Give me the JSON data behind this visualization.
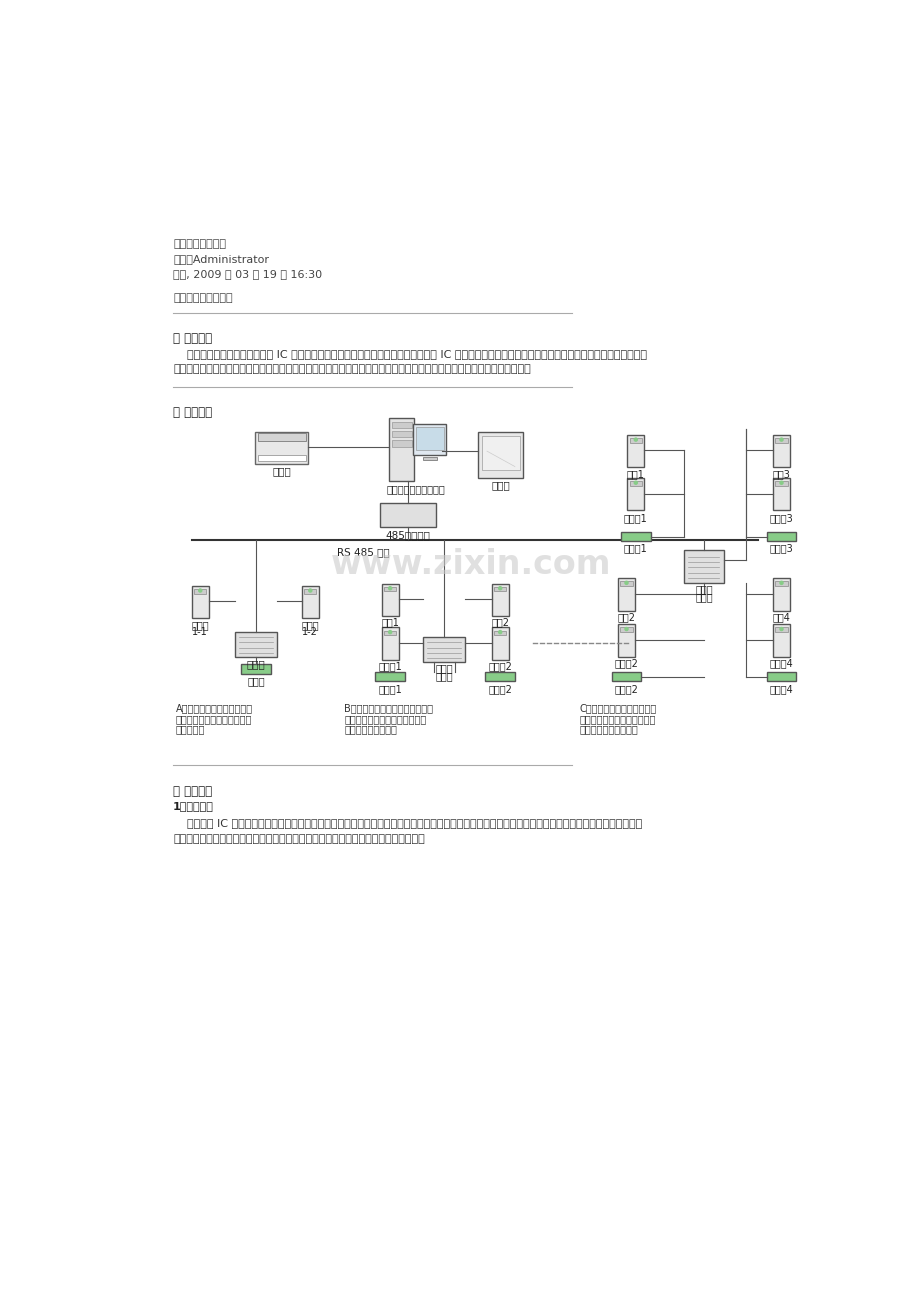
{
  "title_text": "门禁系统解决方案",
  "author_text": "作者：Administrator",
  "date_text": "周四, 2009 年 03 月 19 日 16:30",
  "slogan_text": "以卡代匙、安全方便",
  "section1_title": "一 方案概述",
  "section1_body1": "    智慧电子智能门禁管理系统将 IC 卡技术、计算机控制技术与电子门锁有机结合，用 IC 卡替代钥匙，配合计算机实现智能化门禁控制和管理，有效的解决",
  "section1_body2": "了传统门锁的使用繁琐和无法信息记录等不足，利用数据控制器采集的数据实现数字化管理可为内部人力资源的有效管理。",
  "section2_title": "二 系统结构",
  "section3_title": "三 系统功能",
  "section3_sub1": "1、电子钥匙",
  "section3_body1": "    授权后的 IC 卡即可当作电子钥匙，将此电子钥匙感应器前一晃，感应器感应到信号后指示灯由红变绿，控制器对该卡进行身份验证，验证合法后即控制电",
  "section3_body2": "子门锁自动打开。同时控制器记录开门的日期、时间、卡号、姓名等持卡人出入信息。",
  "bg_color": "#ffffff",
  "text_color": "#333333",
  "separator_color": "#aaaaaa",
  "watermark_text": "www.zixin.com",
  "watermark_color": "#cccccc",
  "label_A": "A方式：一个门锁通过控制器",
  "label_A2": "并联两个感应器实现出入双向",
  "label_A3": "验证控制。",
  "label_B": "B方式：利用一拖二控制器连接感",
  "label_B2": "应器、开门按钮控制门锁的典型",
  "label_B3": "单向验证应用模式。",
  "label_C": "C方式：利用一拖四控制器连",
  "label_C2": "续感应器、开门按钮控制门锁",
  "label_C3": "的单向验证应用模式。"
}
